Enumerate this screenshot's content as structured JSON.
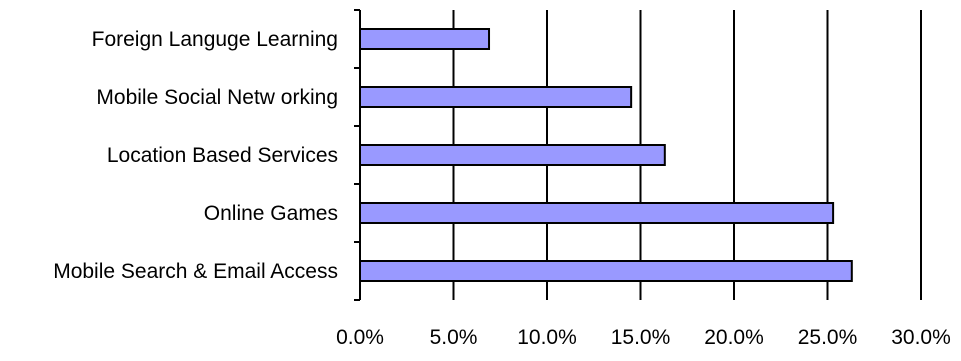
{
  "chart_data": {
    "type": "bar",
    "orientation": "horizontal",
    "categories": [
      "Foreign Languge Learning",
      "Mobile Social Netw orking",
      "Location Based Services",
      "Online Games",
      "Mobile Search & Email Access"
    ],
    "values": [
      0.069,
      0.145,
      0.163,
      0.253,
      0.263
    ],
    "xlim": [
      0,
      0.3
    ],
    "xticks": [
      0,
      0.05,
      0.1,
      0.15,
      0.2,
      0.25,
      0.3
    ],
    "xtick_labels": [
      "0.0%",
      "5.0%",
      "10.0%",
      "15.0%",
      "20.0%",
      "25.0%",
      "30.0%"
    ],
    "title": "",
    "xlabel": "",
    "ylabel": "",
    "grid": "vertical",
    "legend": "none",
    "bar_color": "#9999ff",
    "bar_edge_color": "#000000"
  }
}
